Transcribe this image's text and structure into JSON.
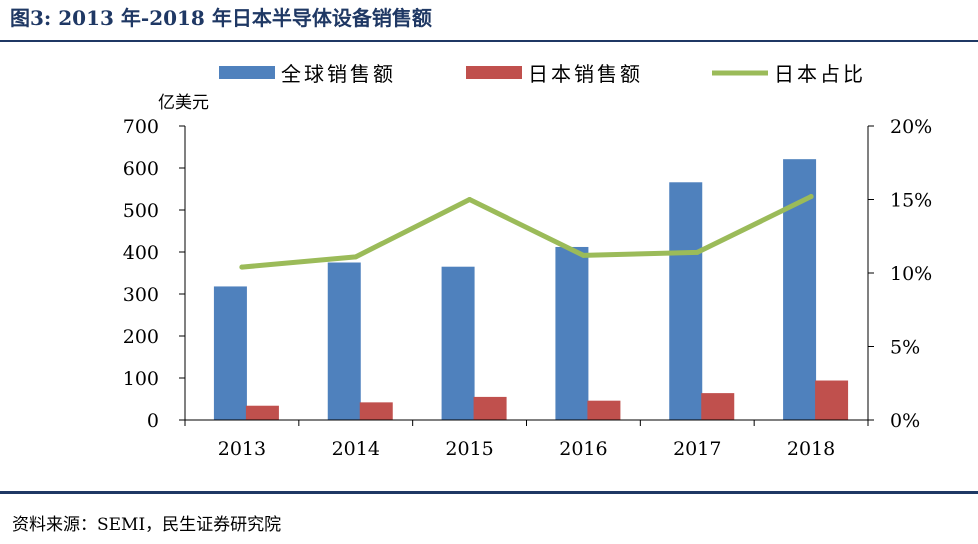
{
  "figure": {
    "title": "图3: 2013 年-2018 年日本半导体设备销售额",
    "source": "资料来源：SEMI，民生证券研究院"
  },
  "chart_data": {
    "type": "bar",
    "categories": [
      "2013",
      "2014",
      "2015",
      "2016",
      "2017",
      "2018"
    ],
    "series": [
      {
        "name": "全球销售额",
        "type": "bar",
        "axis": "left",
        "color": "#4f81bd",
        "values": [
          318,
          375,
          365,
          412,
          566,
          621
        ]
      },
      {
        "name": "日本销售额",
        "type": "bar",
        "axis": "left",
        "color": "#c0504d",
        "values": [
          34,
          42,
          55,
          46,
          64,
          94
        ]
      },
      {
        "name": "日本占比",
        "type": "line",
        "axis": "right",
        "color": "#9bbb59",
        "values": [
          0.104,
          0.111,
          0.15,
          0.112,
          0.114,
          0.152
        ]
      }
    ],
    "y_left": {
      "unit_label": "亿美元",
      "range": [
        0,
        700
      ],
      "ticks": [
        0,
        100,
        200,
        300,
        400,
        500,
        600,
        700
      ],
      "tick_labels": [
        "0",
        "100",
        "200",
        "300",
        "400",
        "500",
        "600",
        "700"
      ]
    },
    "y_right": {
      "range": [
        0,
        0.2
      ],
      "ticks": [
        0,
        0.05,
        0.1,
        0.15,
        0.2
      ],
      "tick_labels": [
        "0%",
        "5%",
        "10%",
        "15%",
        "20%"
      ]
    },
    "legend_position": "top",
    "grid": false
  }
}
